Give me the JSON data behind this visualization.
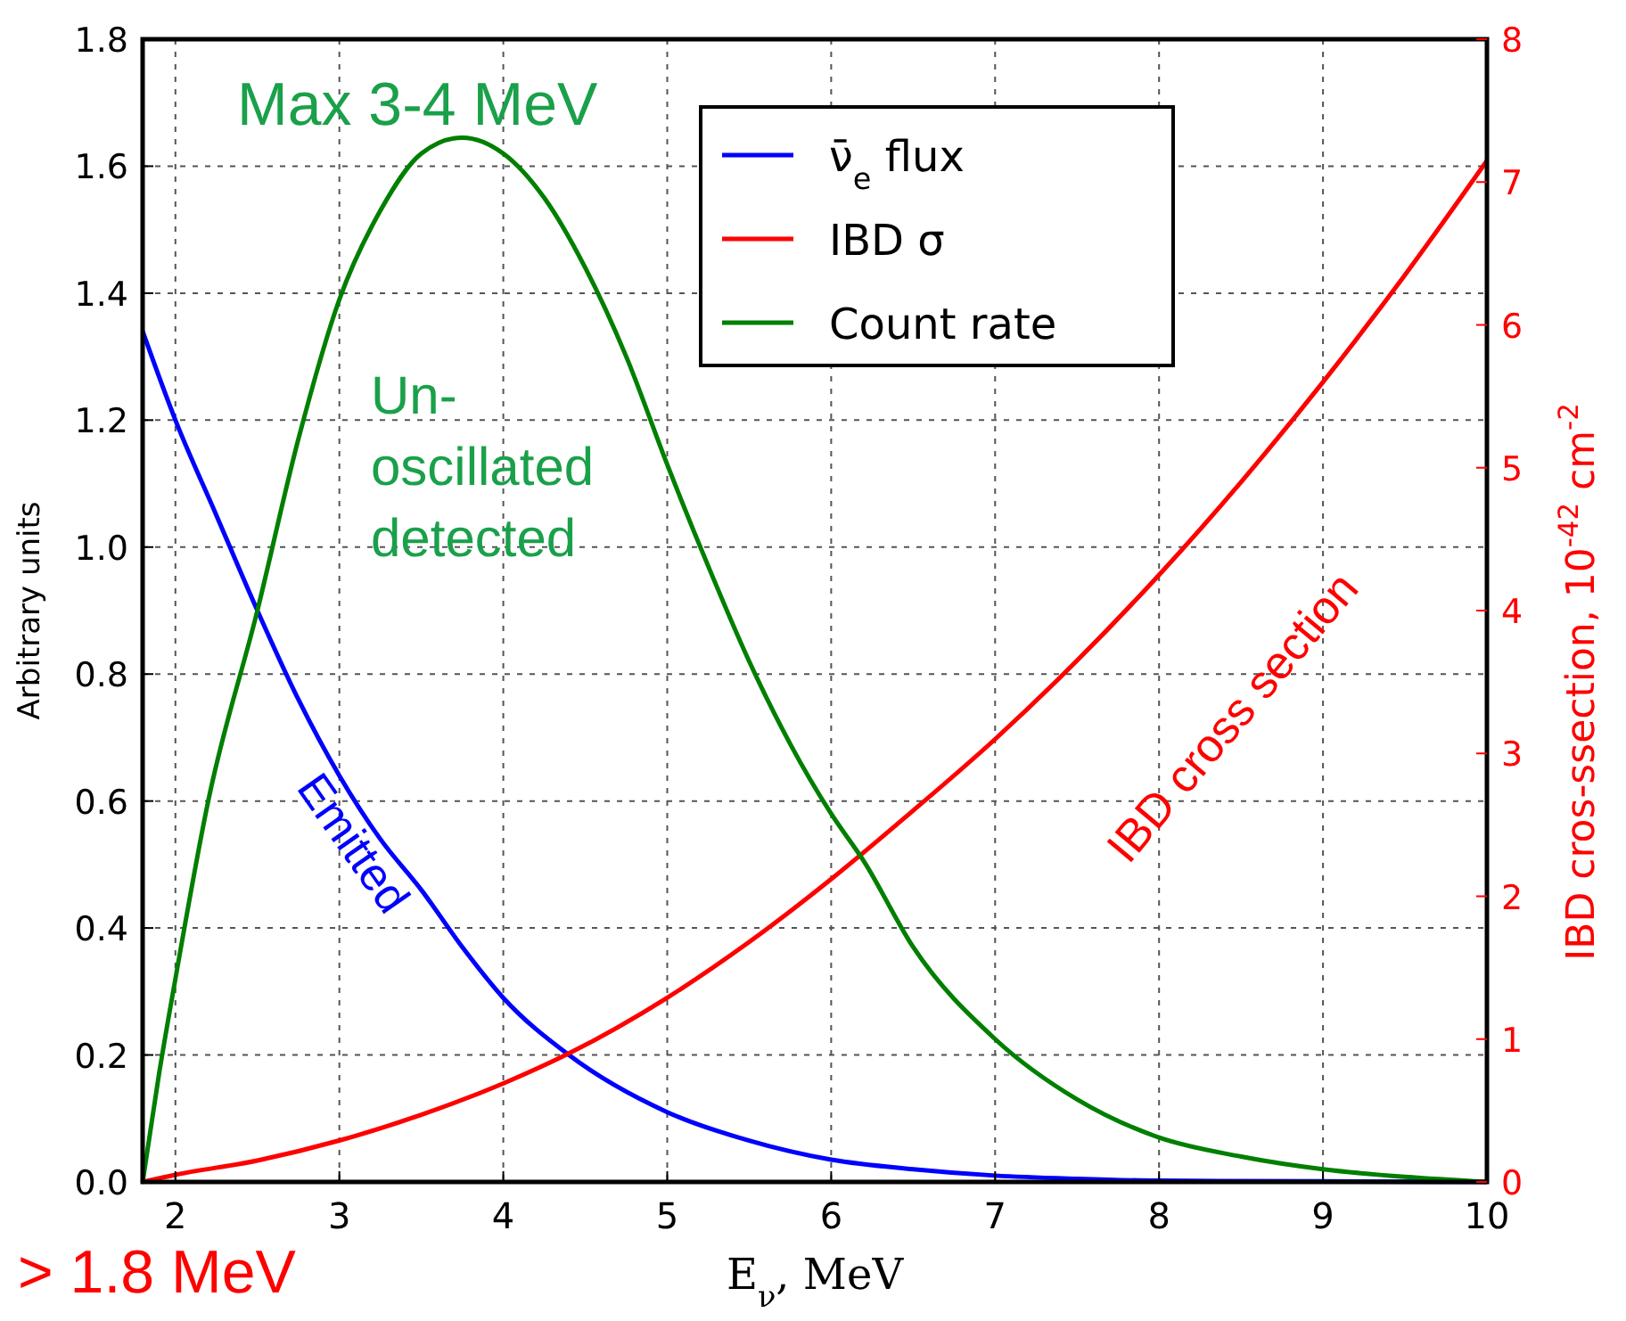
{
  "chart_data": {
    "type": "line",
    "xlabel": "E$_{ν}$, MeV",
    "ylabel": "Arbitrary units",
    "y2label": "IBD cros-ssection, 10$^{-42}$ cm$^{-2}$",
    "xlim": [
      1.8,
      10
    ],
    "xticks": [
      2,
      3,
      4,
      5,
      6,
      7,
      8,
      9,
      10
    ],
    "ylim": [
      0,
      1.8
    ],
    "yticks": [
      {
        "value": 0,
        "label": "0.0"
      },
      {
        "value": 0.2,
        "label": "0.2"
      },
      {
        "value": 0.4,
        "label": "0.4"
      },
      {
        "value": 0.6,
        "label": "0.6"
      },
      {
        "value": 0.8,
        "label": "0.8"
      },
      {
        "value": 1,
        "label": "1.0"
      },
      {
        "value": 1.2,
        "label": "1.2"
      },
      {
        "value": 1.4,
        "label": "1.4"
      },
      {
        "value": 1.6,
        "label": "1.6"
      },
      {
        "value": 1.8,
        "label": "1.8"
      }
    ],
    "y2lim": [
      0,
      8
    ],
    "y2ticks": [
      0,
      1,
      2,
      3,
      4,
      5,
      6,
      7,
      8
    ],
    "grid": true,
    "legend": "top right",
    "line_style": "solid",
    "series": [
      {
        "name": "ν̄$_{e}$ flux",
        "color": "#0000ff",
        "x": [
          1.8,
          2,
          2.25,
          2.5,
          2.75,
          3,
          3.25,
          3.5,
          3.75,
          4,
          4.4,
          5,
          5.5,
          6,
          6.5,
          7,
          7.5,
          8,
          9,
          10
        ],
        "values": [
          1.34,
          1.2,
          1.05,
          0.9,
          0.76,
          0.64,
          0.54,
          0.46,
          0.37,
          0.29,
          0.2,
          0.11,
          0.065,
          0.035,
          0.02,
          0.01,
          0.005,
          0.002,
          0.001,
          0
        ]
      },
      {
        "name": "IBD σ",
        "color": "#ff0000",
        "axis": "y2",
        "x": [
          1.8,
          2,
          2.5,
          3,
          3.5,
          4,
          4.4,
          5,
          5.5,
          6,
          6.5,
          7,
          7.5,
          8,
          8.5,
          9,
          9.5,
          10
        ],
        "values": [
          0,
          0.05,
          0.15,
          0.29,
          0.47,
          0.69,
          0.9,
          1.29,
          1.68,
          2.12,
          2.6,
          3.1,
          3.65,
          4.25,
          4.9,
          5.6,
          6.35,
          7.15
        ]
      },
      {
        "name": "Count rate",
        "color": "#007f00",
        "x": [
          1.8,
          1.9,
          2,
          2.2,
          2.5,
          2.75,
          3,
          3.25,
          3.5,
          3.75,
          4,
          4.25,
          4.5,
          4.75,
          5,
          5.25,
          5.5,
          5.75,
          6,
          6.2,
          6.5,
          7,
          7.5,
          8,
          8.5,
          9,
          9.5,
          10
        ],
        "values": [
          0,
          0.17,
          0.32,
          0.6,
          0.9,
          1.17,
          1.39,
          1.53,
          1.62,
          1.645,
          1.62,
          1.55,
          1.44,
          1.3,
          1.13,
          0.97,
          0.82,
          0.69,
          0.58,
          0.505,
          0.37,
          0.225,
          0.13,
          0.07,
          0.04,
          0.02,
          0.008,
          0
        ]
      }
    ],
    "annotations": [
      "Max 3-4 MeV",
      "Un-\noscillated\ndetected",
      "Emitted",
      "IBD cross section",
      "> 1.8 MeV"
    ]
  }
}
